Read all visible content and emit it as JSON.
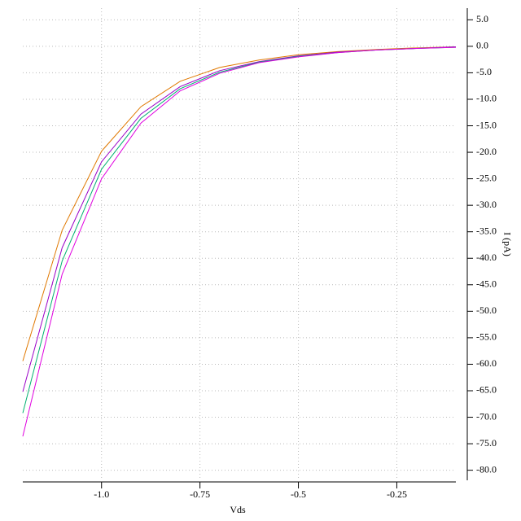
{
  "chart_data": {
    "type": "line",
    "x_label": "Vds",
    "y_label": "I (pA)",
    "x": [
      -1.2,
      -1.1,
      -1.0,
      -0.9,
      -0.8,
      -0.7,
      -0.6,
      -0.5,
      -0.4,
      -0.3,
      -0.2,
      -0.1
    ],
    "series": [
      {
        "color": "#e07800",
        "values": [
          -59.4,
          -34.7,
          -19.8,
          -11.4,
          -6.6,
          -4.0,
          -2.6,
          -1.6,
          -1.0,
          -0.6,
          -0.3,
          -0.1
        ]
      },
      {
        "color": "#9a00c8",
        "values": [
          -65.2,
          -38.0,
          -21.8,
          -12.8,
          -7.6,
          -4.6,
          -2.9,
          -1.8,
          -1.1,
          -0.7,
          -0.4,
          -0.1
        ]
      },
      {
        "color": "#00b070",
        "values": [
          -69.2,
          -40.5,
          -23.2,
          -13.6,
          -8.0,
          -4.9,
          -3.0,
          -1.9,
          -1.2,
          -0.7,
          -0.4,
          -0.2
        ]
      },
      {
        "color": "#e000e0",
        "values": [
          -73.6,
          -43.0,
          -25.0,
          -14.5,
          -8.4,
          -5.1,
          -3.1,
          -2.0,
          -1.2,
          -0.7,
          -0.4,
          -0.2
        ]
      }
    ],
    "xlim": [
      -1.2,
      -0.1
    ],
    "ylim": [
      -81.9,
      7.2
    ],
    "xticks": [
      {
        "value": -1.0,
        "label": "-1.0"
      },
      -0.75,
      -0.5,
      -0.25
    ],
    "yticks": [
      {
        "value": 5,
        "label": "5.0"
      },
      {
        "value": 0,
        "label": "0.0"
      },
      {
        "value": -5,
        "label": "-5.0"
      },
      {
        "value": -10,
        "label": "-10.0"
      },
      {
        "value": -15,
        "label": "-15.0"
      },
      {
        "value": -20,
        "label": "-20.0"
      },
      {
        "value": -25,
        "label": "-25.0"
      },
      {
        "value": -30,
        "label": "-30.0"
      },
      {
        "value": -35,
        "label": "-35.0"
      },
      {
        "value": -40,
        "label": "-40.0"
      },
      {
        "value": -45,
        "label": "-45.0"
      },
      {
        "value": -50,
        "label": "-50.0"
      },
      {
        "value": -55,
        "label": "-55.0"
      },
      {
        "value": -60,
        "label": "-60.0"
      },
      {
        "value": -65,
        "label": "-65.0"
      },
      {
        "value": -70,
        "label": "-70.0"
      },
      {
        "value": -75,
        "label": "-75.0"
      },
      {
        "value": -80,
        "label": "-80.0"
      }
    ],
    "grid": true
  }
}
